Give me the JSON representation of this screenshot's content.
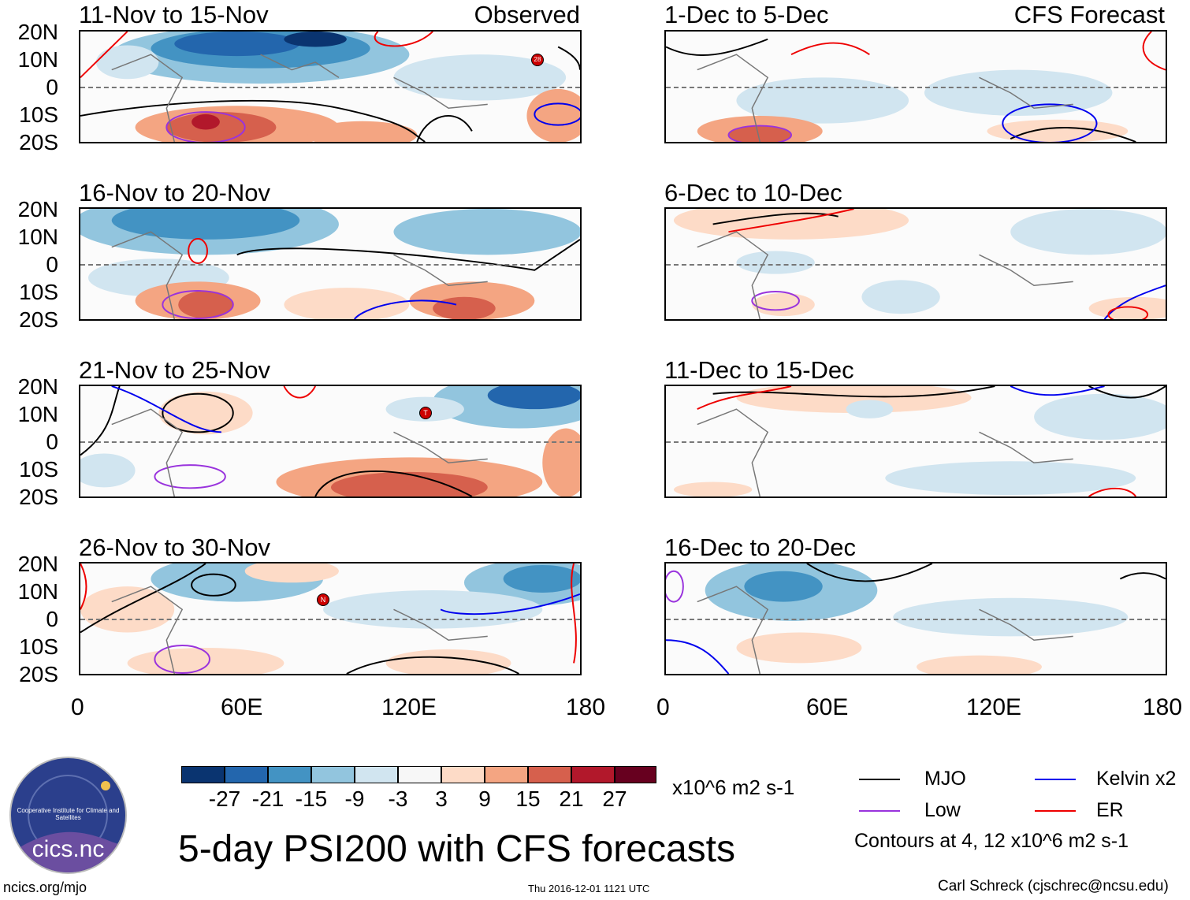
{
  "header": {
    "observed_label": "Observed",
    "forecast_label": "CFS Forecast"
  },
  "panels_observed": [
    {
      "title": "11-Nov to 15-Nov"
    },
    {
      "title": "16-Nov to 20-Nov"
    },
    {
      "title": "21-Nov to 25-Nov"
    },
    {
      "title": "26-Nov to 30-Nov"
    }
  ],
  "panels_forecast": [
    {
      "title": "1-Dec to 5-Dec"
    },
    {
      "title": "6-Dec to 10-Dec"
    },
    {
      "title": "11-Dec to 15-Dec"
    },
    {
      "title": "16-Dec to 20-Dec"
    }
  ],
  "lat_labels": [
    "20N",
    "10N",
    "0",
    "10S",
    "20S"
  ],
  "lon_labels": [
    "0",
    "60E",
    "120E",
    "180"
  ],
  "storm_markers": [
    "28",
    "T",
    "N"
  ],
  "colorbar": {
    "colors": [
      "#0a3470",
      "#2366ad",
      "#4393c3",
      "#92c5de",
      "#d1e5f0",
      "#f7f7f7",
      "#fddbc7",
      "#f4a582",
      "#d6604d",
      "#b2182b",
      "#67001f"
    ],
    "ticks": [
      "-27",
      "-21",
      "-15",
      "-9",
      "-3",
      "3",
      "9",
      "15",
      "21",
      "27"
    ],
    "units": "x10^6 m2 s-1"
  },
  "legend": {
    "items": [
      {
        "label": "MJO",
        "color": "#000000"
      },
      {
        "label": "Kelvin x2",
        "color": "#0000ee"
      },
      {
        "label": "Low",
        "color": "#9933dd"
      },
      {
        "label": "ER",
        "color": "#ee0000"
      }
    ],
    "contours_note": "Contours at 4, 12 x10^6 m2 s-1"
  },
  "logo": {
    "text": "cics.nc",
    "ring_text": "Cooperative Institute for Climate and Satellites"
  },
  "main_title": "5-day PSI200 with CFS forecasts",
  "footer": {
    "left": "ncics.org/mjo",
    "center": "Thu 2016-12-01 1121 UTC",
    "right": "Carl Schreck (cjschrec@ncsu.edu)"
  }
}
